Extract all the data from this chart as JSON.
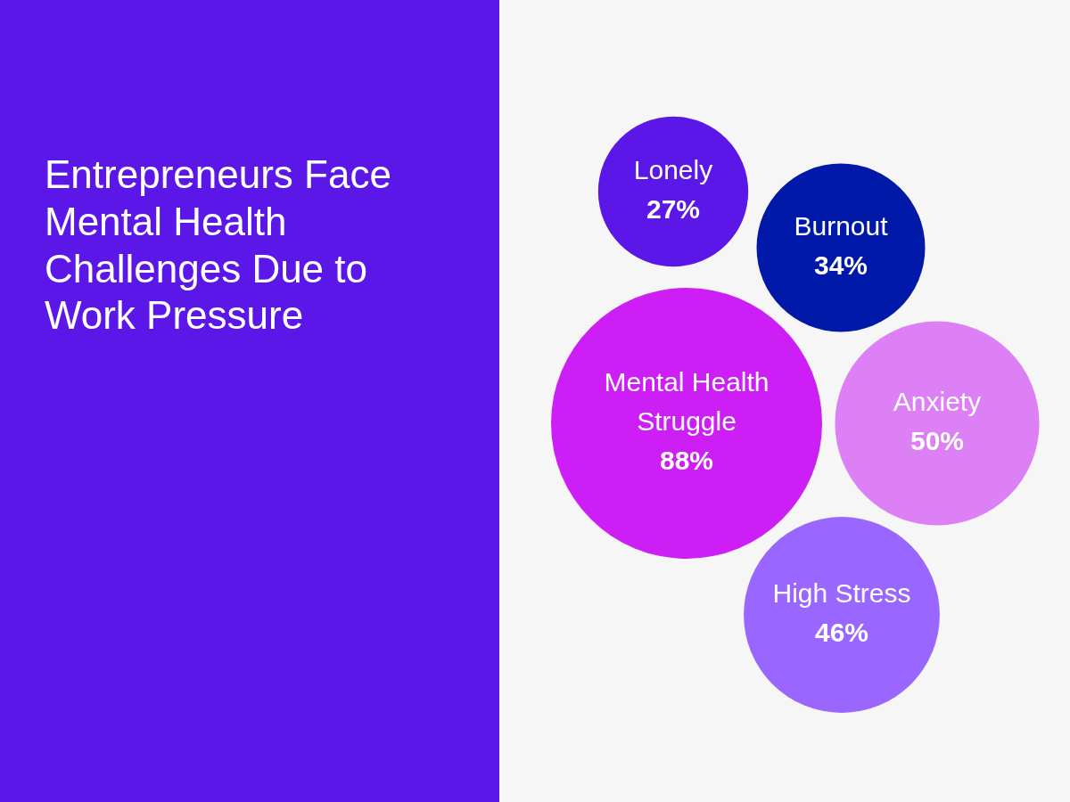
{
  "chart_data": {
    "type": "other",
    "title": "Entrepreneurs Face Mental Health Challenges Due to Work Pressure",
    "categories": [
      "Lonely",
      "Burnout",
      "Mental Health Struggle",
      "Anxiety",
      "High Stress"
    ],
    "values": [
      27,
      34,
      88,
      50,
      46
    ],
    "colors": [
      "#5b17e8",
      "#0019a8",
      "#cc1ef5",
      "#dd80f5",
      "#9966ff"
    ],
    "value_labels": [
      "27%",
      "34%",
      "88%",
      "50%",
      "46%"
    ]
  }
}
